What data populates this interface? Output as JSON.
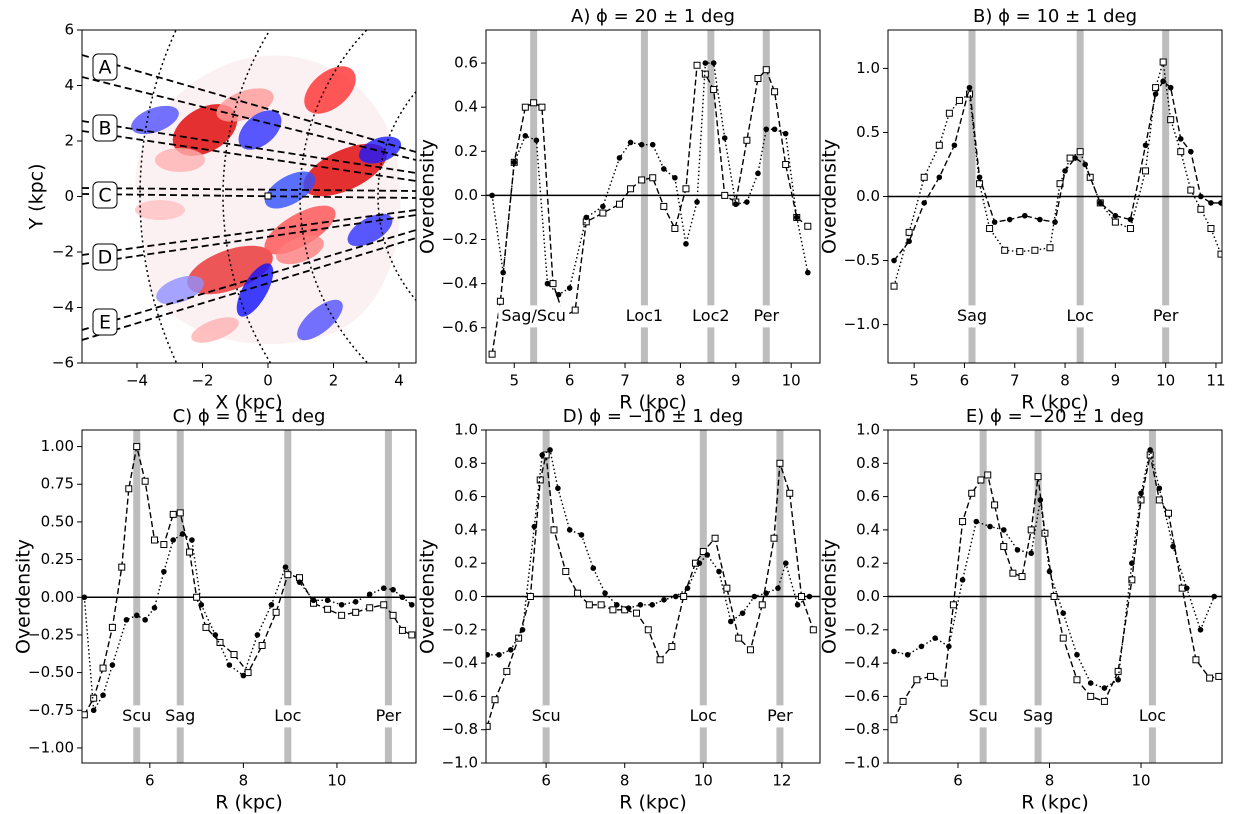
{
  "chart_data": [
    {
      "type": "map",
      "xlabel": "X (kpc)",
      "ylabel": "Y (kpc)",
      "xlim": [
        -5.68,
        4.52
      ],
      "ylim": [
        -6,
        6
      ],
      "xticks": [
        {
          "value": -4,
          "label": "−4"
        },
        {
          "value": -2,
          "label": "−2"
        },
        0,
        2,
        4
      ],
      "yticks": [
        {
          "value": -6,
          "label": "−6"
        },
        {
          "value": -4,
          "label": "−4"
        },
        {
          "value": -2,
          "label": "−2"
        },
        0,
        2,
        4,
        6
      ],
      "regions": [
        "A",
        "B",
        "C",
        "D",
        "E"
      ]
    },
    {
      "type": "line",
      "title": "A) ϕ = 20 ± 1 deg",
      "xlabel": "R (kpc)",
      "ylabel": "Overdensity",
      "xlim": [
        4.49,
        10.52
      ],
      "ylim": [
        -0.76,
        0.75
      ],
      "xticks": [
        5,
        6,
        7,
        8,
        9,
        10
      ],
      "yticks": [
        {
          "value": -0.6,
          "label": "−0.6"
        },
        {
          "value": -0.4,
          "label": "−0.4"
        },
        {
          "value": -0.2,
          "label": "−0.2"
        },
        {
          "value": 0,
          "label": "0.0"
        },
        0.2,
        0.4,
        0.6
      ],
      "hline": 0,
      "bands": [
        {
          "x": 5.35,
          "label": "Sag/Scu"
        },
        {
          "x": 7.35,
          "label": "Loc1"
        },
        {
          "x": 8.55,
          "label": "Loc2"
        },
        {
          "x": 9.55,
          "label": "Per"
        }
      ],
      "series": [
        {
          "marker": "square",
          "linestyle": "dashed",
          "color": "#000000",
          "x": [
            4.6,
            4.75,
            5.0,
            5.2,
            5.35,
            5.5,
            5.7,
            5.9,
            6.1,
            6.3,
            6.6,
            6.9,
            7.1,
            7.3,
            7.5,
            7.7,
            7.9,
            8.1,
            8.3,
            8.45,
            8.6,
            8.8,
            9.0,
            9.2,
            9.4,
            9.55,
            9.7,
            9.9,
            10.1,
            10.3
          ],
          "values": [
            -0.72,
            -0.48,
            0.15,
            0.4,
            0.42,
            0.4,
            -0.4,
            -0.55,
            -0.52,
            -0.12,
            -0.08,
            -0.04,
            0.03,
            0.07,
            0.08,
            -0.05,
            -0.15,
            0.03,
            0.59,
            0.55,
            0.48,
            0.0,
            -0.03,
            0.25,
            0.53,
            0.57,
            0.47,
            0.14,
            -0.1,
            -0.14
          ]
        },
        {
          "marker": "circle",
          "linestyle": "dotted",
          "color": "#000000",
          "x": [
            4.6,
            4.8,
            5.0,
            5.2,
            5.4,
            5.6,
            5.8,
            6.0,
            6.3,
            6.6,
            6.9,
            7.1,
            7.3,
            7.5,
            7.7,
            7.9,
            8.1,
            8.3,
            8.45,
            8.6,
            8.8,
            9.0,
            9.2,
            9.4,
            9.55,
            9.7,
            9.9,
            10.1,
            10.3
          ],
          "values": [
            0.0,
            -0.35,
            0.15,
            0.27,
            0.25,
            -0.4,
            -0.45,
            -0.42,
            -0.1,
            -0.05,
            0.17,
            0.24,
            0.23,
            0.23,
            0.12,
            0.08,
            -0.22,
            -0.03,
            0.6,
            0.6,
            0.26,
            -0.04,
            -0.03,
            0.1,
            0.3,
            0.3,
            0.28,
            -0.1,
            -0.35
          ]
        }
      ]
    },
    {
      "type": "line",
      "title": "B) ϕ = 10 ± 1 deg",
      "xlabel": "R (kpc)",
      "ylabel": "Overdensity",
      "xlim": [
        4.48,
        11.12
      ],
      "ylim": [
        -1.3,
        1.3
      ],
      "xticks": [
        5,
        6,
        7,
        8,
        9,
        10,
        11
      ],
      "yticks": [
        {
          "value": -1,
          "label": "−1.0"
        },
        {
          "value": -0.5,
          "label": "−0.5"
        },
        {
          "value": 0,
          "label": "0.0"
        },
        0.5,
        {
          "value": 1,
          "label": "1.0"
        }
      ],
      "hline": 0,
      "bands": [
        {
          "x": 6.15,
          "label": "Sag"
        },
        {
          "x": 8.3,
          "label": "Loc"
        },
        {
          "x": 10.0,
          "label": "Per"
        }
      ],
      "series": [
        {
          "marker": "square",
          "linestyle": "dotted",
          "color": "#000000",
          "x": [
            4.6,
            4.9,
            5.2,
            5.5,
            5.7,
            5.9,
            6.1,
            6.3,
            6.5,
            6.8,
            7.1,
            7.4,
            7.7,
            7.9,
            8.1,
            8.3,
            8.5,
            8.7,
            9.0,
            9.3,
            9.6,
            9.8,
            9.95,
            10.1,
            10.3,
            10.5,
            10.7,
            10.9,
            11.1
          ],
          "values": [
            -0.7,
            -0.28,
            0.15,
            0.4,
            0.65,
            0.75,
            0.8,
            0.1,
            -0.25,
            -0.42,
            -0.43,
            -0.42,
            -0.4,
            0.1,
            0.3,
            0.35,
            0.15,
            -0.05,
            -0.2,
            -0.25,
            0.2,
            0.85,
            1.05,
            0.6,
            0.35,
            0.05,
            -0.1,
            -0.25,
            -0.45
          ]
        },
        {
          "marker": "circle",
          "linestyle": "dashed",
          "color": "#000000",
          "x": [
            4.6,
            4.9,
            5.2,
            5.5,
            5.8,
            6.1,
            6.3,
            6.6,
            6.9,
            7.2,
            7.5,
            7.8,
            8.0,
            8.2,
            8.4,
            8.7,
            9.0,
            9.3,
            9.6,
            9.8,
            9.95,
            10.1,
            10.3,
            10.5,
            10.7,
            10.9,
            11.1
          ],
          "values": [
            -0.5,
            -0.35,
            -0.05,
            0.15,
            0.4,
            0.85,
            0.15,
            -0.2,
            -0.18,
            -0.15,
            -0.18,
            -0.2,
            0.2,
            0.3,
            0.25,
            -0.05,
            -0.15,
            -0.18,
            0.4,
            0.8,
            0.9,
            0.85,
            0.45,
            0.35,
            0.0,
            -0.05,
            -0.05
          ]
        }
      ]
    },
    {
      "type": "line",
      "title": "C) ϕ = 0 ± 1 deg",
      "xlabel": "R (kpc)",
      "ylabel": "Overdensity",
      "xlim": [
        4.55,
        11.69
      ],
      "ylim": [
        -1.1,
        1.11
      ],
      "xticks": [
        6,
        8,
        10
      ],
      "yticks": [
        {
          "value": -1,
          "label": "−1.00"
        },
        {
          "value": -0.75,
          "label": "−0.75"
        },
        {
          "value": -0.5,
          "label": "−0.50"
        },
        {
          "value": -0.25,
          "label": "−0.25"
        },
        {
          "value": 0,
          "label": "0.00"
        },
        0.25,
        {
          "value": 0.5,
          "label": "0.50"
        },
        0.75,
        {
          "value": 1,
          "label": "1.00"
        }
      ],
      "hline": 0,
      "bands": [
        {
          "x": 5.72,
          "label": "Scu"
        },
        {
          "x": 6.65,
          "label": "Sag"
        },
        {
          "x": 8.95,
          "label": "Loc"
        },
        {
          "x": 11.1,
          "label": "Per"
        }
      ],
      "series": [
        {
          "marker": "square",
          "linestyle": "dashed",
          "color": "#000000",
          "x": [
            4.6,
            4.8,
            5.0,
            5.2,
            5.4,
            5.55,
            5.72,
            5.9,
            6.1,
            6.3,
            6.5,
            6.65,
            6.85,
            7.0,
            7.2,
            7.5,
            7.8,
            8.1,
            8.4,
            8.7,
            8.95,
            9.2,
            9.5,
            9.8,
            10.1,
            10.4,
            10.7,
            11.0,
            11.2,
            11.4,
            11.6
          ],
          "values": [
            -0.78,
            -0.67,
            -0.47,
            -0.2,
            0.2,
            0.72,
            1.0,
            0.77,
            0.38,
            0.35,
            0.55,
            0.56,
            0.3,
            0.0,
            -0.2,
            -0.3,
            -0.38,
            -0.5,
            -0.32,
            -0.1,
            0.15,
            0.13,
            -0.04,
            -0.08,
            -0.12,
            -0.1,
            -0.07,
            -0.05,
            -0.12,
            -0.22,
            -0.25
          ]
        },
        {
          "marker": "circle",
          "linestyle": "dotted",
          "color": "#000000",
          "x": [
            4.6,
            4.8,
            5.0,
            5.2,
            5.5,
            5.72,
            5.9,
            6.1,
            6.3,
            6.5,
            6.7,
            6.9,
            7.1,
            7.4,
            7.7,
            8.0,
            8.3,
            8.6,
            8.9,
            9.2,
            9.5,
            9.8,
            10.1,
            10.4,
            10.7,
            11.0,
            11.2,
            11.4,
            11.6
          ],
          "values": [
            0.0,
            -0.75,
            -0.65,
            -0.45,
            -0.15,
            -0.12,
            -0.15,
            -0.07,
            0.17,
            0.38,
            0.42,
            0.38,
            -0.05,
            -0.25,
            -0.45,
            -0.52,
            -0.25,
            -0.05,
            0.2,
            0.1,
            -0.02,
            -0.02,
            -0.05,
            -0.03,
            0.02,
            0.06,
            0.05,
            0.0,
            -0.05
          ]
        }
      ]
    },
    {
      "type": "line",
      "title": "D) ϕ = −10 ± 1 deg",
      "xlabel": "R (kpc)",
      "ylabel": "Overdensity",
      "xlim": [
        4.47,
        12.97
      ],
      "ylim": [
        -1,
        1
      ],
      "xticks": [
        6,
        8,
        10,
        12
      ],
      "yticks": [
        {
          "value": -1,
          "label": "−1.0"
        },
        {
          "value": -0.8,
          "label": "−0.8"
        },
        {
          "value": -0.6,
          "label": "−0.6"
        },
        {
          "value": -0.4,
          "label": "−0.4"
        },
        {
          "value": -0.2,
          "label": "−0.2"
        },
        {
          "value": 0,
          "label": "0.0"
        },
        0.2,
        0.4,
        0.6,
        0.8,
        {
          "value": 1,
          "label": "1.0"
        }
      ],
      "hline": 0,
      "bands": [
        {
          "x": 6.0,
          "label": "Scu"
        },
        {
          "x": 10.0,
          "label": "Loc"
        },
        {
          "x": 11.95,
          "label": "Per"
        }
      ],
      "series": [
        {
          "marker": "square",
          "linestyle": "dashed",
          "color": "#000000",
          "x": [
            4.5,
            4.7,
            5.0,
            5.3,
            5.6,
            5.85,
            6.0,
            6.2,
            6.5,
            6.8,
            7.1,
            7.4,
            7.7,
            8.0,
            8.3,
            8.6,
            8.9,
            9.2,
            9.5,
            9.8,
            10.0,
            10.3,
            10.6,
            10.9,
            11.2,
            11.5,
            11.8,
            11.95,
            12.2,
            12.5,
            12.8
          ],
          "values": [
            -0.78,
            -0.62,
            -0.45,
            -0.25,
            0.0,
            0.7,
            0.85,
            0.4,
            0.15,
            0.02,
            -0.05,
            -0.05,
            -0.08,
            -0.08,
            -0.1,
            -0.2,
            -0.38,
            -0.3,
            0.0,
            0.2,
            0.27,
            0.35,
            0.05,
            -0.25,
            -0.32,
            -0.05,
            0.35,
            0.8,
            0.62,
            0.0,
            -0.2
          ]
        },
        {
          "marker": "circle",
          "linestyle": "dotted",
          "color": "#000000",
          "x": [
            4.5,
            4.8,
            5.1,
            5.4,
            5.7,
            5.9,
            6.1,
            6.3,
            6.6,
            6.9,
            7.2,
            7.5,
            7.8,
            8.1,
            8.4,
            8.7,
            9.0,
            9.3,
            9.6,
            9.9,
            10.1,
            10.4,
            10.7,
            11.0,
            11.3,
            11.6,
            11.9,
            12.1,
            12.4,
            12.7
          ],
          "values": [
            -0.35,
            -0.35,
            -0.32,
            -0.2,
            0.42,
            0.85,
            0.88,
            0.65,
            0.4,
            0.37,
            0.17,
            0.02,
            -0.05,
            -0.07,
            -0.05,
            -0.05,
            -0.02,
            0.0,
            0.05,
            0.2,
            0.25,
            0.15,
            -0.15,
            -0.1,
            0.0,
            0.02,
            0.05,
            0.2,
            -0.05,
            0.0
          ]
        }
      ]
    },
    {
      "type": "line",
      "title": "E) ϕ = −20 ± 1 deg",
      "xlabel": "R (kpc)",
      "ylabel": "Overdensity",
      "xlim": [
        4.47,
        11.77
      ],
      "ylim": [
        -1,
        1
      ],
      "xticks": [
        6,
        8,
        10
      ],
      "yticks": [
        {
          "value": -1,
          "label": "−1.0"
        },
        {
          "value": -0.8,
          "label": "−0.8"
        },
        {
          "value": -0.6,
          "label": "−0.6"
        },
        {
          "value": -0.4,
          "label": "−0.4"
        },
        {
          "value": -0.2,
          "label": "−0.2"
        },
        {
          "value": 0,
          "label": "0.0"
        },
        0.2,
        0.4,
        0.6,
        0.8,
        {
          "value": 1,
          "label": "1.0"
        }
      ],
      "hline": 0,
      "bands": [
        {
          "x": 6.55,
          "label": "Scu"
        },
        {
          "x": 7.75,
          "label": "Sag"
        },
        {
          "x": 10.25,
          "label": "Loc"
        }
      ],
      "series": [
        {
          "marker": "square",
          "linestyle": "dashed",
          "color": "#000000",
          "x": [
            4.6,
            4.8,
            5.1,
            5.4,
            5.7,
            5.9,
            6.1,
            6.3,
            6.5,
            6.65,
            6.8,
            7.0,
            7.2,
            7.4,
            7.6,
            7.75,
            7.9,
            8.1,
            8.3,
            8.6,
            8.9,
            9.2,
            9.5,
            9.8,
            10.0,
            10.2,
            10.4,
            10.6,
            10.9,
            11.2,
            11.5,
            11.7
          ],
          "values": [
            -0.74,
            -0.63,
            -0.5,
            -0.48,
            -0.52,
            -0.05,
            0.45,
            0.62,
            0.7,
            0.73,
            0.55,
            0.3,
            0.14,
            0.12,
            0.4,
            0.72,
            0.38,
            0.0,
            -0.25,
            -0.5,
            -0.6,
            -0.63,
            -0.45,
            0.1,
            0.58,
            0.85,
            0.58,
            0.5,
            0.05,
            -0.38,
            -0.49,
            -0.48
          ]
        },
        {
          "marker": "circle",
          "linestyle": "dotted",
          "color": "#000000",
          "x": [
            4.6,
            4.9,
            5.2,
            5.5,
            5.8,
            6.1,
            6.4,
            6.7,
            7.0,
            7.3,
            7.6,
            7.8,
            8.0,
            8.3,
            8.6,
            8.9,
            9.2,
            9.5,
            9.8,
            10.0,
            10.2,
            10.4,
            10.7,
            11.0,
            11.3,
            11.6
          ],
          "values": [
            -0.33,
            -0.35,
            -0.3,
            -0.25,
            -0.3,
            0.1,
            0.45,
            0.42,
            0.4,
            0.28,
            0.26,
            0.58,
            0.15,
            -0.1,
            -0.35,
            -0.52,
            -0.55,
            -0.5,
            0.2,
            0.62,
            0.88,
            0.65,
            0.3,
            0.05,
            -0.2,
            0.0
          ]
        }
      ]
    }
  ]
}
